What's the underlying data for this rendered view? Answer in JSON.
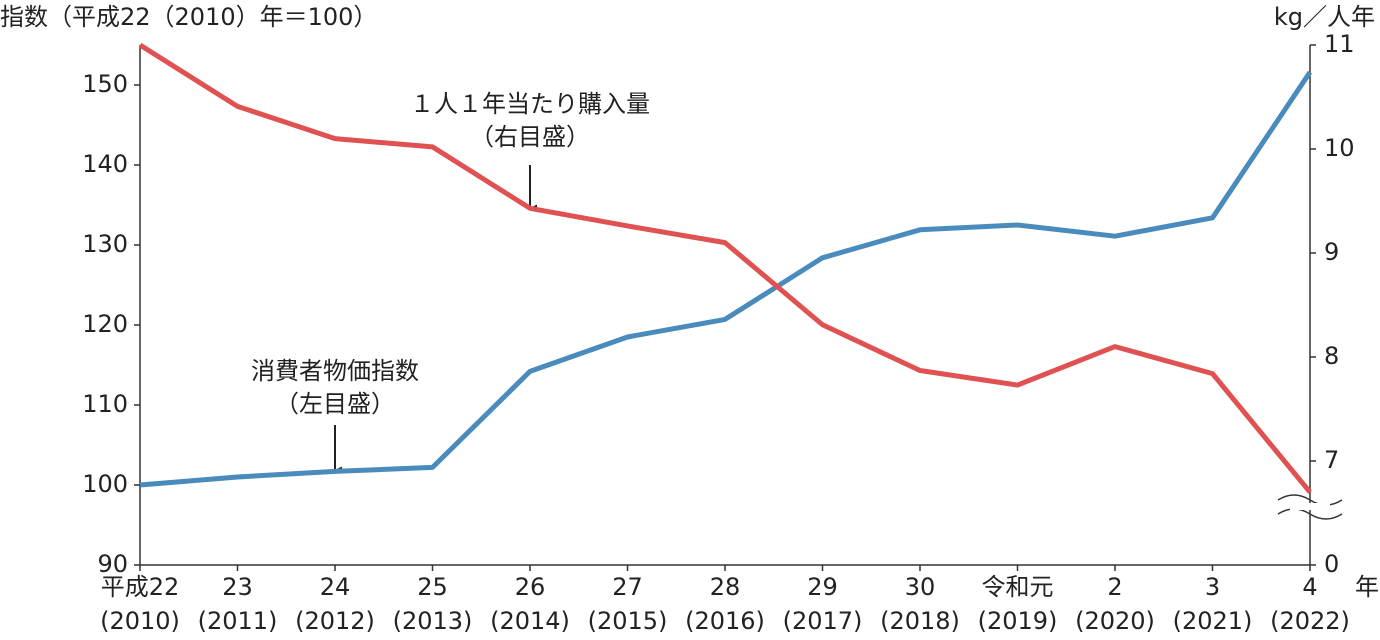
{
  "chart_data": {
    "type": "line",
    "y_label": "指数（平成22（2010）年＝100）",
    "y2_label": "kg／人年",
    "x_unit": "年",
    "categories": [
      "平成22",
      "23",
      "24",
      "25",
      "26",
      "27",
      "28",
      "29",
      "30",
      "令和元",
      "2",
      "3",
      "4"
    ],
    "category_years": [
      "(2010)",
      "(2011)",
      "(2012)",
      "(2013)",
      "(2014)",
      "(2015)",
      "(2016)",
      "(2017)",
      "(2018)",
      "(2019)",
      "(2020)",
      "(2021)",
      "(2022)"
    ],
    "series": [
      {
        "name": "消費者物価指数",
        "note": "（左目盛）",
        "color": "#4a8bbd",
        "axis": "y",
        "values": [
          100,
          101,
          101.7,
          102.2,
          114.2,
          118.5,
          120.7,
          128.4,
          131.9,
          132.5,
          131.1,
          133.4,
          151.6
        ]
      },
      {
        "name": "１人１年当たり購入量",
        "note": "（右目盛）",
        "color": "#e05252",
        "axis": "y2",
        "values": [
          11.0,
          10.41,
          10.1,
          10.02,
          9.43,
          9.26,
          9.1,
          8.31,
          7.87,
          7.73,
          8.1,
          7.84,
          6.7
        ]
      }
    ],
    "ylim": [
      90,
      155
    ],
    "yticks": [
      90,
      100,
      110,
      120,
      130,
      140,
      150
    ],
    "y2lim": [
      0,
      11
    ],
    "y2ticks": [
      0,
      7,
      8,
      9,
      10,
      11
    ],
    "y2_break": [
      0,
      6
    ]
  }
}
